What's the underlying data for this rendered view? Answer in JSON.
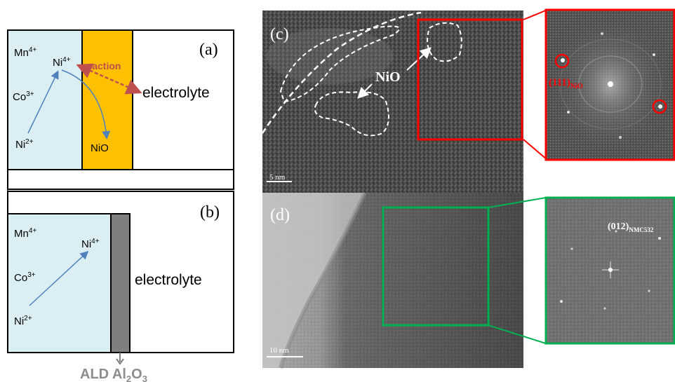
{
  "panel_a": {
    "label": "(a)",
    "mn": "Mn",
    "mn_sup": "4+",
    "ni4": "Ni",
    "ni4_sup": "4+",
    "co": "Co",
    "co_sup": "3+",
    "ni2": "Ni",
    "ni2_sup": "2+",
    "nio": "NiO",
    "reaction": "reaction",
    "electrolyte": "electrolyte"
  },
  "panel_b": {
    "label": "(b)",
    "mn": "Mn",
    "mn_sup": "4+",
    "ni4": "Ni",
    "ni4_sup": "4+",
    "co": "Co",
    "co_sup": "3+",
    "ni2": "Ni",
    "ni2_sup": "2+",
    "electrolyte": "electrolyte",
    "ald": "ALD Al",
    "ald_sub1": "2",
    "ald_mid": "O",
    "ald_sub2": "3"
  },
  "panel_c": {
    "label": "(c)",
    "nio": "NiO",
    "scale": "5 nm",
    "fft_label": "(111)",
    "fft_sub": "NiO"
  },
  "panel_d": {
    "label": "(d)",
    "scale": "10 nm",
    "fft_label": "(012)",
    "fft_sub": "NMC532"
  },
  "colors": {
    "cathode_fill": "#dbeef4",
    "coating_orange": "#ffc000",
    "ald_gray": "#7f7f7f",
    "arrow_blue": "#4f81bd",
    "reaction_brown": "#c0504d",
    "highlight_red": "#ff0000",
    "highlight_green": "#00b050"
  }
}
